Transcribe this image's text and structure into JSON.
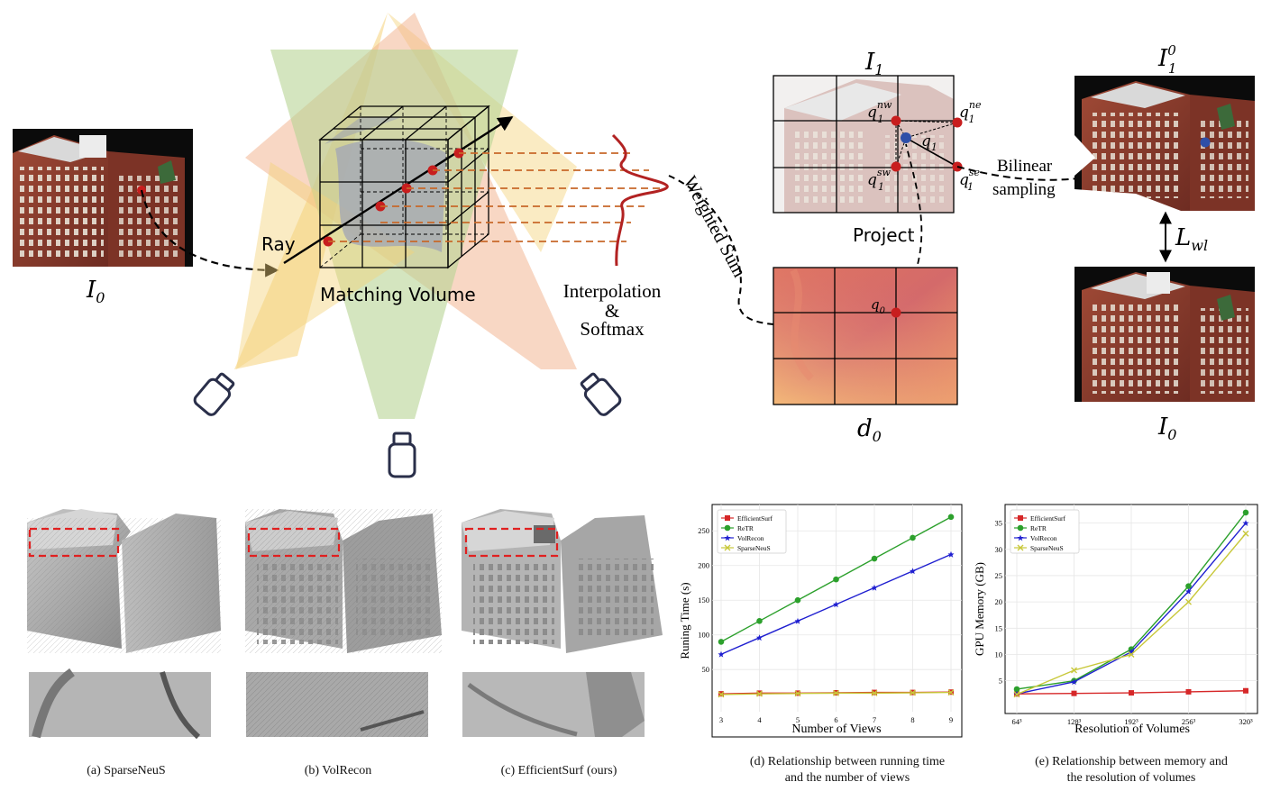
{
  "top": {
    "i0_left": "I",
    "i0_left_sub": "0",
    "ray": "Ray",
    "matching_volume": "Matching Volume",
    "interp_1": "Interpolation",
    "interp_2": "&",
    "interp_3": "Softmax",
    "weighted_sum": "Weighted Sum",
    "i1": "I",
    "i1_sub": "1",
    "q_nw": "q",
    "q_nw_sub": "1",
    "q_nw_sup": "nw",
    "q_ne": "q",
    "q_ne_sub": "1",
    "q_ne_sup": "ne",
    "q1": "q",
    "q1_sub": "1",
    "q_sw": "q",
    "q_sw_sub": "1",
    "q_sw_sup": "sw",
    "q_se": "q",
    "q_se_sub": "1",
    "q_se_sup": "se",
    "bilinear_1": "Bilinear",
    "bilinear_2": "sampling",
    "project": "Project",
    "q0": "q",
    "q0_sub": "0",
    "d0": "d",
    "d0_sub": "0",
    "i10": "I",
    "i10_sub": "1",
    "i10_sup": "0",
    "lwl": "L",
    "lwl_sub": "wl",
    "i0_right": "I",
    "i0_right_sub": "0"
  },
  "captions": {
    "a": "(a) SparseNeuS",
    "b": "(b) VolRecon",
    "c": "(c) EfficientSurf (ours)",
    "d_1": "(d) Relationship between running time",
    "d_2": "and the number of views",
    "e_1": "(e) Relationship between memory and",
    "e_2": "the resolution of volumes"
  },
  "colors": {
    "efficientsurf": "#d62728",
    "retr": "#2ca02c",
    "volrecon": "#1f1fd0",
    "sparseneus": "#c8c83a",
    "red_dot": "#c81e1e",
    "blue_dot": "#2e4fa8",
    "brick": "#8e3b2c"
  },
  "chart_data": [
    {
      "type": "line",
      "xlabel": "Number of Views",
      "ylabel": "Runing Time (s)",
      "xlim": [
        3,
        9
      ],
      "ylim": [
        10,
        275
      ],
      "x_ticks": [
        "3",
        "4",
        "5",
        "6",
        "7",
        "8",
        "9"
      ],
      "y_ticks": [
        "50",
        "100",
        "150",
        "200",
        "250"
      ],
      "x": [
        3,
        4,
        5,
        6,
        7,
        8,
        9
      ],
      "legend_position": "top-left",
      "series": [
        {
          "name": "EfficientSurf",
          "values": [
            15,
            16,
            16,
            16.5,
            17,
            17,
            17.5
          ]
        },
        {
          "name": "ReTR",
          "values": [
            90,
            120,
            150,
            180,
            210,
            240,
            270
          ]
        },
        {
          "name": "VolRecon",
          "values": [
            72,
            96,
            120,
            144,
            168,
            192,
            216
          ]
        },
        {
          "name": "SparseNeuS",
          "values": [
            14,
            15,
            15.5,
            16,
            16,
            16.5,
            17
          ]
        }
      ]
    },
    {
      "type": "line",
      "xlabel": "Resolution of Volumes",
      "ylabel": "GPU Memory (GB)",
      "xlim": [
        64,
        320
      ],
      "ylim": [
        1,
        37.5
      ],
      "x_ticks": [
        "64³",
        "128³",
        "192³",
        "256³",
        "320³"
      ],
      "y_ticks": [
        "5",
        "10",
        "15",
        "20",
        "25",
        "30",
        "35"
      ],
      "x": [
        64,
        128,
        192,
        256,
        320
      ],
      "legend_position": "top-left",
      "series": [
        {
          "name": "EfficientSurf",
          "values": [
            2.5,
            2.6,
            2.7,
            2.9,
            3.1
          ]
        },
        {
          "name": "ReTR",
          "values": [
            3.4,
            5.0,
            11.0,
            23.0,
            37.0
          ]
        },
        {
          "name": "VolRecon",
          "values": [
            2.5,
            4.8,
            10.5,
            22.0,
            35.0
          ]
        },
        {
          "name": "SparseNeuS",
          "values": [
            2.4,
            7.0,
            10.0,
            20.0,
            33.0
          ]
        }
      ]
    }
  ]
}
